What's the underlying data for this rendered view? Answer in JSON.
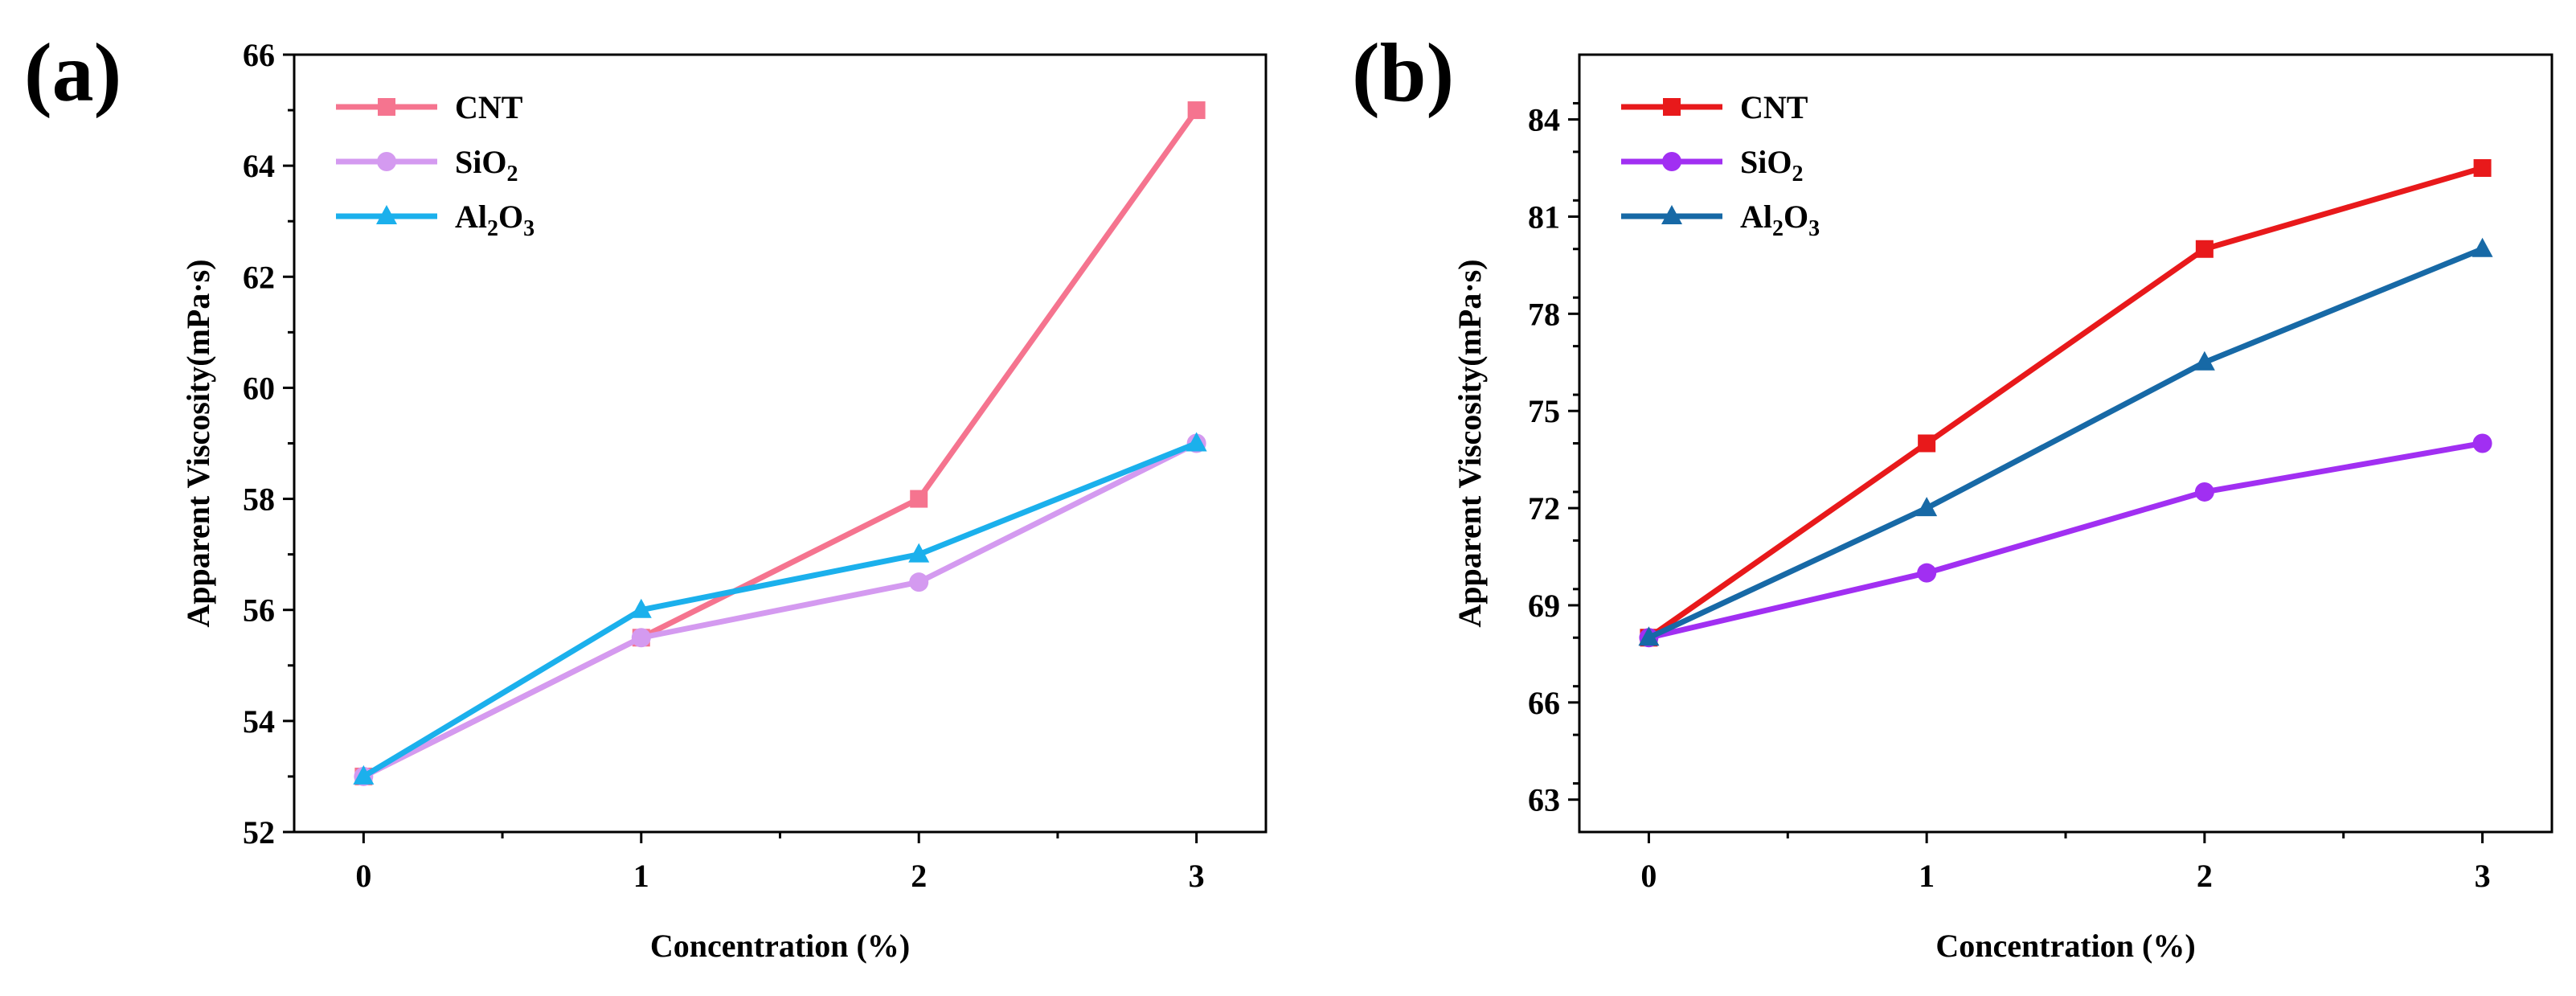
{
  "chart_data": [
    {
      "type": "line",
      "panel_label": "(a)",
      "xlabel": "Concentration (%)",
      "ylabel": "Apparent Viscosity(mPa·s)",
      "x": [
        0,
        1,
        2,
        3
      ],
      "x_ticks": [
        "0",
        "1",
        "2",
        "3"
      ],
      "xlim": [
        -0.25,
        3.25
      ],
      "ylim": [
        52,
        66
      ],
      "y_ticks": [
        "52",
        "54",
        "56",
        "58",
        "60",
        "62",
        "64",
        "66"
      ],
      "y_tick_values": [
        52,
        54,
        56,
        58,
        60,
        62,
        64,
        66
      ],
      "legend_position": "top-left",
      "series": [
        {
          "name": "CNT",
          "label_main": "CNT",
          "label_sub1": "",
          "label_mid": "",
          "label_sub2": "",
          "marker": "square",
          "color": "#f5748f",
          "values": [
            53,
            55.5,
            58,
            65
          ]
        },
        {
          "name": "SiO2",
          "label_main": "SiO",
          "label_sub1": "2",
          "label_mid": "",
          "label_sub2": "",
          "marker": "circle",
          "color": "#d49af0",
          "values": [
            53,
            55.5,
            56.5,
            59
          ]
        },
        {
          "name": "Al2O3",
          "label_main": "Al",
          "label_sub1": "2",
          "label_mid": "O",
          "label_sub2": "3",
          "marker": "triangle",
          "color": "#1bb0ec",
          "values": [
            53,
            56,
            57,
            59
          ]
        }
      ]
    },
    {
      "type": "line",
      "panel_label": "(b)",
      "xlabel": "Concentration (%)",
      "ylabel": "Apparent Viscosity(mPa·s)",
      "x": [
        0,
        1,
        2,
        3
      ],
      "x_ticks": [
        "0",
        "1",
        "2",
        "3"
      ],
      "xlim": [
        -0.25,
        3.25
      ],
      "ylim": [
        62,
        86
      ],
      "y_ticks": [
        "63",
        "66",
        "69",
        "72",
        "75",
        "78",
        "81",
        "84"
      ],
      "y_tick_values": [
        63,
        66,
        69,
        72,
        75,
        78,
        81,
        84
      ],
      "legend_position": "top-left",
      "series": [
        {
          "name": "CNT",
          "label_main": "CNT",
          "label_sub1": "",
          "label_mid": "",
          "label_sub2": "",
          "marker": "square",
          "color": "#e8191b",
          "values": [
            68,
            74,
            80,
            82.5
          ]
        },
        {
          "name": "SiO2",
          "label_main": "SiO",
          "label_sub1": "2",
          "label_mid": "",
          "label_sub2": "",
          "marker": "circle",
          "color": "#a12ff2",
          "values": [
            68,
            70,
            72.5,
            74
          ]
        },
        {
          "name": "Al2O3",
          "label_main": "Al",
          "label_sub1": "2",
          "label_mid": "O",
          "label_sub2": "3",
          "marker": "triangle",
          "color": "#1769a6",
          "values": [
            68,
            72,
            76.5,
            80
          ]
        }
      ]
    }
  ]
}
